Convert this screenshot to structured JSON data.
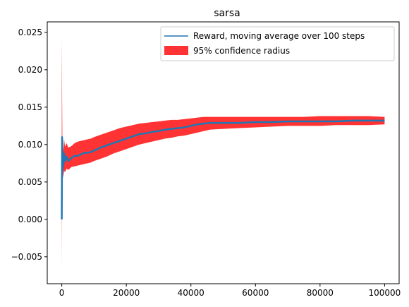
{
  "chart_data": {
    "type": "line",
    "title": "sarsa",
    "xlabel": "",
    "ylabel": "",
    "xlim": [
      -4500,
      104500
    ],
    "ylim": [
      -0.0086,
      0.0264
    ],
    "xticks": [
      0,
      20000,
      40000,
      60000,
      80000,
      100000
    ],
    "xtick_labels": [
      "0",
      "20000",
      "40000",
      "60000",
      "80000",
      "100000"
    ],
    "yticks": [
      -0.005,
      0.0,
      0.005,
      0.01,
      0.015,
      0.02,
      0.025
    ],
    "ytick_labels": [
      "−0.005",
      "0.000",
      "0.005",
      "0.010",
      "0.015",
      "0.020",
      "0.025"
    ],
    "grid": false,
    "legend_position": "upper right",
    "series": [
      {
        "name": "Reward, moving average over 100 steps",
        "kind": "line",
        "color": "#1f77b4",
        "x": [
          0,
          100,
          200,
          300,
          500,
          700,
          1000,
          1500,
          2000,
          3000,
          4000,
          5000,
          6000,
          7000,
          8000,
          9000,
          10000,
          12000,
          14000,
          16000,
          18000,
          20000,
          22000,
          24000,
          26000,
          28000,
          30000,
          32000,
          34000,
          36000,
          38000,
          40000,
          42000,
          44000,
          46000,
          50000,
          55000,
          60000,
          65000,
          70000,
          75000,
          80000,
          85000,
          90000,
          95000,
          100000
        ],
        "y": [
          0.0,
          0.011,
          0.0065,
          0.0085,
          0.0072,
          0.0088,
          0.0078,
          0.0084,
          0.0078,
          0.0082,
          0.0085,
          0.0085,
          0.0087,
          0.0089,
          0.0089,
          0.009,
          0.0092,
          0.0096,
          0.0099,
          0.0102,
          0.0105,
          0.0108,
          0.0111,
          0.0114,
          0.0115,
          0.0117,
          0.0118,
          0.012,
          0.0121,
          0.0122,
          0.0123,
          0.0125,
          0.0127,
          0.0128,
          0.0129,
          0.0129,
          0.0129,
          0.013,
          0.013,
          0.0131,
          0.0131,
          0.0131,
          0.0131,
          0.0132,
          0.0132,
          0.0132
        ]
      },
      {
        "name": "95% confidence radius",
        "kind": "band",
        "color": "#ff0000",
        "x": [
          0,
          100,
          200,
          300,
          500,
          700,
          1000,
          1500,
          2000,
          3000,
          4000,
          5000,
          6000,
          7000,
          8000,
          9000,
          10000,
          12000,
          14000,
          16000,
          18000,
          20000,
          22000,
          24000,
          26000,
          28000,
          30000,
          32000,
          34000,
          36000,
          38000,
          40000,
          42000,
          44000,
          46000,
          50000,
          55000,
          60000,
          65000,
          70000,
          75000,
          80000,
          85000,
          90000,
          95000,
          100000
        ],
        "lower": [
          -0.0068,
          0.0055,
          0.0045,
          0.0065,
          0.0055,
          0.0065,
          0.0063,
          0.0068,
          0.0066,
          0.007,
          0.0071,
          0.0072,
          0.0073,
          0.0074,
          0.0075,
          0.0076,
          0.0078,
          0.0081,
          0.0084,
          0.0088,
          0.0091,
          0.0094,
          0.0097,
          0.01,
          0.0102,
          0.0104,
          0.0106,
          0.0108,
          0.0109,
          0.0111,
          0.0112,
          0.0114,
          0.0116,
          0.0118,
          0.012,
          0.0121,
          0.0122,
          0.0123,
          0.0124,
          0.0125,
          0.0125,
          0.0125,
          0.0126,
          0.0126,
          0.0126,
          0.0127
        ],
        "upper": [
          0.0243,
          0.0165,
          0.0095,
          0.0105,
          0.0092,
          0.0108,
          0.0097,
          0.0102,
          0.0096,
          0.0098,
          0.0102,
          0.0104,
          0.0105,
          0.0106,
          0.0107,
          0.0108,
          0.011,
          0.0113,
          0.0116,
          0.0119,
          0.0122,
          0.0124,
          0.0126,
          0.0128,
          0.0129,
          0.013,
          0.0131,
          0.0132,
          0.0133,
          0.0133,
          0.0134,
          0.0135,
          0.0136,
          0.0137,
          0.0137,
          0.0137,
          0.0137,
          0.0137,
          0.0137,
          0.0137,
          0.0137,
          0.0138,
          0.0138,
          0.0138,
          0.0138,
          0.0137
        ]
      }
    ]
  }
}
